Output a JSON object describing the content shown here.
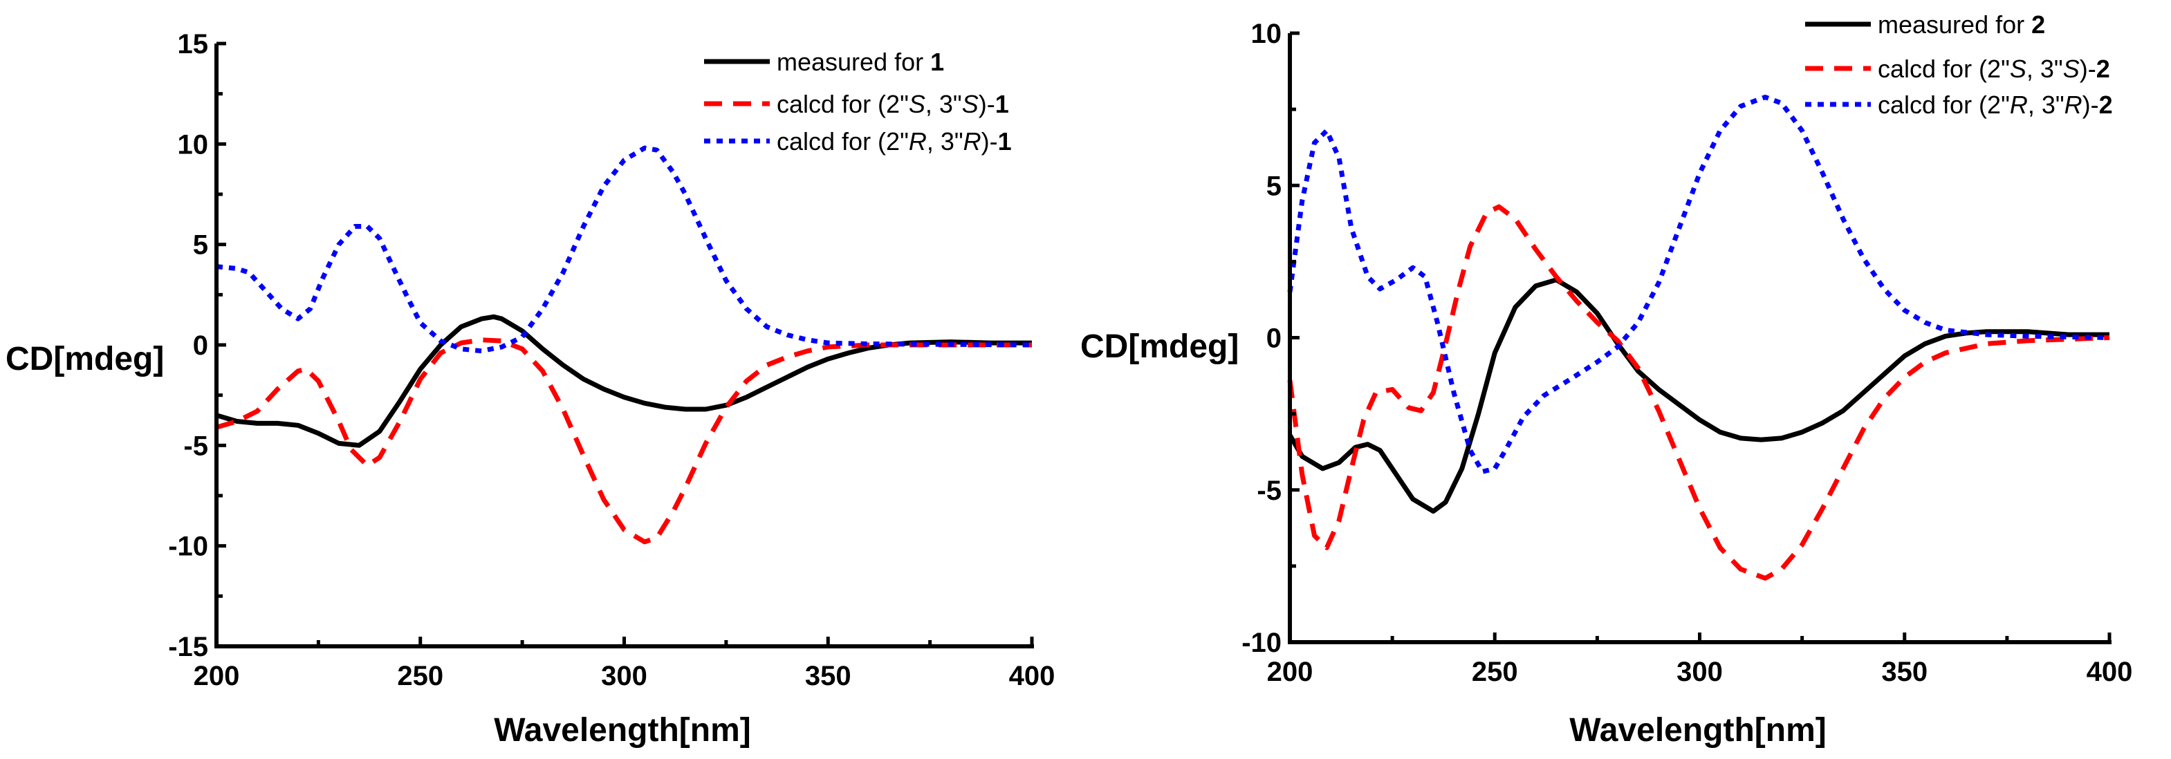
{
  "chart_data": [
    {
      "type": "line",
      "xlabel": "Wavelength[nm]",
      "ylabel": "CD[mdeg]",
      "xlim": [
        200,
        400
      ],
      "ylim": [
        -15,
        15
      ],
      "xticks": [
        200,
        250,
        300,
        350,
        400
      ],
      "yticks": [
        15,
        10,
        5,
        0,
        -5,
        -10,
        -15
      ],
      "grid": false,
      "legend_position": "top-right",
      "series": [
        {
          "name": "measured for 1",
          "legend": [
            {
              "t": "measured for "
            },
            {
              "t": "1",
              "b": true
            }
          ],
          "color": "#000000",
          "style": "solid",
          "x": [
            200,
            205,
            210,
            215,
            220,
            225,
            230,
            235,
            240,
            245,
            250,
            255,
            260,
            265,
            268,
            270,
            275,
            280,
            285,
            290,
            295,
            300,
            305,
            310,
            315,
            320,
            325,
            330,
            335,
            340,
            345,
            350,
            355,
            360,
            365,
            370,
            380,
            390,
            400
          ],
          "y": [
            -3.5,
            -3.8,
            -3.9,
            -3.9,
            -4.0,
            -4.4,
            -4.9,
            -5.0,
            -4.3,
            -2.8,
            -1.2,
            0.0,
            0.9,
            1.3,
            1.4,
            1.3,
            0.7,
            -0.2,
            -1.0,
            -1.7,
            -2.2,
            -2.6,
            -2.9,
            -3.1,
            -3.2,
            -3.2,
            -3.0,
            -2.6,
            -2.1,
            -1.6,
            -1.1,
            -0.7,
            -0.4,
            -0.15,
            0.0,
            0.1,
            0.15,
            0.1,
            0.1
          ]
        },
        {
          "name": "calcd for (2\"S, 3\"S)-1",
          "legend": [
            {
              "t": "calcd for (2\""
            },
            {
              "t": "S",
              "i": true
            },
            {
              "t": ", 3\""
            },
            {
              "t": "S",
              "i": true
            },
            {
              "t": ")-"
            },
            {
              "t": "1",
              "b": true
            }
          ],
          "color": "#ff0000",
          "style": "dash",
          "x": [
            200,
            205,
            210,
            215,
            220,
            222,
            225,
            230,
            233,
            237,
            240,
            245,
            250,
            255,
            260,
            265,
            270,
            275,
            280,
            285,
            290,
            295,
            300,
            305,
            308,
            312,
            315,
            320,
            325,
            330,
            335,
            340,
            345,
            350,
            360,
            400
          ],
          "y": [
            -4.1,
            -3.8,
            -3.3,
            -2.2,
            -1.3,
            -1.2,
            -1.8,
            -3.8,
            -5.2,
            -6.0,
            -5.6,
            -3.8,
            -1.7,
            -0.4,
            0.1,
            0.25,
            0.2,
            -0.2,
            -1.3,
            -3.2,
            -5.5,
            -7.7,
            -9.2,
            -9.8,
            -9.6,
            -8.3,
            -7.1,
            -4.9,
            -3.1,
            -1.8,
            -1.0,
            -0.6,
            -0.3,
            -0.1,
            0,
            0
          ]
        },
        {
          "name": "calcd for (2\"R, 3\"R)-1",
          "legend": [
            {
              "t": "calcd for (2\""
            },
            {
              "t": "R",
              "i": true
            },
            {
              "t": ", 3\""
            },
            {
              "t": "R",
              "i": true
            },
            {
              "t": ")-"
            },
            {
              "t": "1",
              "b": true
            }
          ],
          "color": "#0000ff",
          "style": "dot",
          "x": [
            200,
            205,
            208,
            212,
            216,
            220,
            223,
            226,
            230,
            234,
            237,
            240,
            243,
            247,
            250,
            255,
            260,
            265,
            270,
            275,
            280,
            285,
            290,
            295,
            300,
            305,
            308,
            312,
            315,
            320,
            325,
            330,
            335,
            340,
            345,
            350,
            360,
            400
          ],
          "y": [
            3.9,
            3.8,
            3.6,
            2.7,
            1.8,
            1.3,
            1.8,
            3.3,
            5.0,
            5.9,
            5.9,
            5.3,
            4.0,
            2.3,
            1.1,
            0.2,
            -0.2,
            -0.3,
            -0.1,
            0.4,
            1.8,
            3.6,
            5.9,
            7.9,
            9.2,
            9.8,
            9.7,
            8.6,
            7.5,
            5.3,
            3.2,
            1.8,
            0.9,
            0.5,
            0.25,
            0.1,
            0.05,
            0
          ]
        }
      ]
    },
    {
      "type": "line",
      "xlabel": "Wavelength[nm]",
      "ylabel": "CD[mdeg]",
      "xlim": [
        200,
        400
      ],
      "ylim": [
        -10,
        10
      ],
      "xticks": [
        200,
        250,
        300,
        350,
        400
      ],
      "yticks": [
        10,
        5,
        0,
        -5,
        -10
      ],
      "grid": false,
      "legend_position": "top-right",
      "series": [
        {
          "name": "measured for 2",
          "legend": [
            {
              "t": "measured for "
            },
            {
              "t": "2",
              "b": true
            }
          ],
          "color": "#000000",
          "style": "solid",
          "x": [
            200,
            203,
            208,
            212,
            216,
            219,
            222,
            226,
            230,
            235,
            238,
            242,
            246,
            250,
            255,
            260,
            265,
            270,
            275,
            280,
            285,
            290,
            295,
            300,
            305,
            310,
            315,
            320,
            325,
            330,
            335,
            340,
            345,
            350,
            355,
            360,
            365,
            370,
            380,
            390,
            400
          ],
          "y": [
            -3.2,
            -3.9,
            -4.3,
            -4.1,
            -3.6,
            -3.5,
            -3.7,
            -4.5,
            -5.3,
            -5.7,
            -5.4,
            -4.3,
            -2.5,
            -0.5,
            1.0,
            1.7,
            1.9,
            1.5,
            0.8,
            -0.2,
            -1.1,
            -1.7,
            -2.2,
            -2.7,
            -3.1,
            -3.3,
            -3.35,
            -3.3,
            -3.1,
            -2.8,
            -2.4,
            -1.8,
            -1.2,
            -0.6,
            -0.2,
            0.05,
            0.15,
            0.2,
            0.2,
            0.1,
            0.1
          ]
        },
        {
          "name": "calcd for (2\"S, 3\"S)-2",
          "legend": [
            {
              "t": "calcd for (2\""
            },
            {
              "t": "S",
              "i": true
            },
            {
              "t": ", 3\""
            },
            {
              "t": "S",
              "i": true
            },
            {
              "t": ")-"
            },
            {
              "t": "2",
              "b": true
            }
          ],
          "color": "#ff0000",
          "style": "dash",
          "x": [
            200,
            203,
            206,
            209,
            212,
            215,
            218,
            221,
            225,
            229,
            232,
            235,
            238,
            241,
            244,
            248,
            251,
            255,
            260,
            265,
            270,
            275,
            280,
            285,
            290,
            295,
            300,
            305,
            310,
            316,
            320,
            325,
            330,
            335,
            340,
            345,
            350,
            355,
            360,
            370,
            380,
            400
          ],
          "y": [
            -1.4,
            -4.5,
            -6.5,
            -6.9,
            -6.0,
            -4.3,
            -2.7,
            -1.8,
            -1.7,
            -2.3,
            -2.4,
            -1.8,
            -0.2,
            1.5,
            3.0,
            4.1,
            4.3,
            3.9,
            2.9,
            2.0,
            1.2,
            0.5,
            -0.1,
            -1.0,
            -2.4,
            -4.0,
            -5.6,
            -6.9,
            -7.6,
            -7.9,
            -7.6,
            -6.8,
            -5.6,
            -4.3,
            -3.0,
            -2.0,
            -1.3,
            -0.8,
            -0.5,
            -0.2,
            -0.1,
            0
          ]
        },
        {
          "name": "calcd for (2\"R, 3\"R)-2",
          "legend": [
            {
              "t": "calcd for (2\""
            },
            {
              "t": "R",
              "i": true
            },
            {
              "t": ", 3\""
            },
            {
              "t": "R",
              "i": true
            },
            {
              "t": ")-"
            },
            {
              "t": "2",
              "b": true
            }
          ],
          "color": "#0000ff",
          "style": "dot",
          "x": [
            200,
            203,
            206,
            209,
            212,
            215,
            219,
            222,
            226,
            230,
            233,
            236,
            240,
            244,
            247,
            250,
            253,
            257,
            262,
            268,
            275,
            280,
            285,
            290,
            295,
            300,
            305,
            310,
            316,
            320,
            325,
            330,
            335,
            340,
            345,
            350,
            355,
            360,
            370,
            380,
            400
          ],
          "y": [
            1.5,
            4.5,
            6.4,
            6.8,
            5.9,
            3.6,
            2.0,
            1.6,
            1.9,
            2.3,
            2.0,
            0.5,
            -1.8,
            -3.7,
            -4.4,
            -4.3,
            -3.6,
            -2.6,
            -1.9,
            -1.4,
            -0.8,
            -0.3,
            0.5,
            1.8,
            3.6,
            5.4,
            6.8,
            7.6,
            7.9,
            7.7,
            6.8,
            5.4,
            3.9,
            2.6,
            1.6,
            0.9,
            0.5,
            0.25,
            0.1,
            0.05,
            0
          ]
        }
      ]
    }
  ]
}
